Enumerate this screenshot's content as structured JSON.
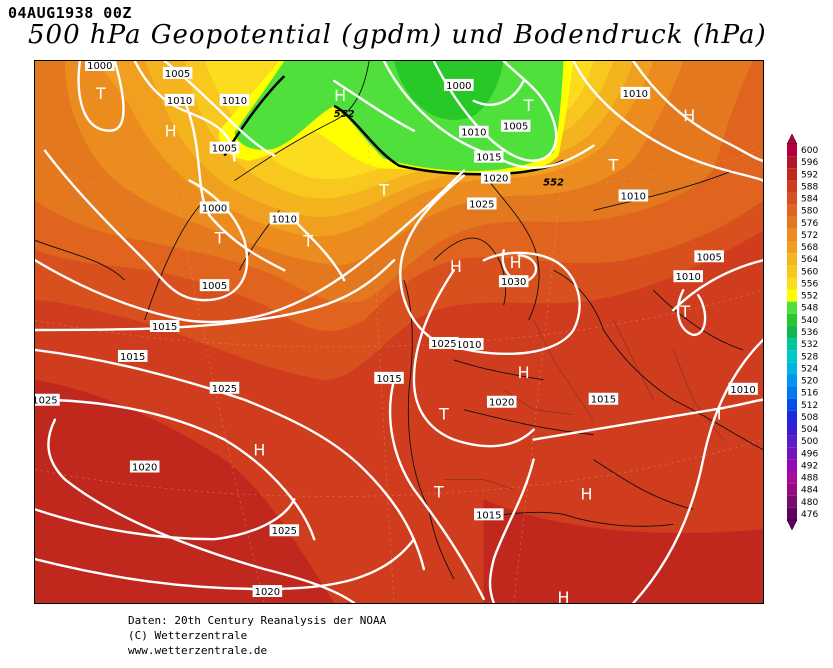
{
  "date": "04AUG1938 00Z",
  "title": "500 hPa Geopotential (gpdm) und Bodendruck (hPa)",
  "credits": [
    "Daten: 20th Century Reanalysis der NOAA",
    "(C) Wetterzentrale",
    "www.wetterzentrale.de"
  ],
  "colorbar": {
    "levels": [
      "600",
      "596",
      "592",
      "588",
      "584",
      "580",
      "576",
      "572",
      "568",
      "564",
      "560",
      "556",
      "552",
      "548",
      "540",
      "536",
      "532",
      "528",
      "524",
      "520",
      "516",
      "512",
      "508",
      "504",
      "500",
      "496",
      "492",
      "488",
      "484",
      "480",
      "476"
    ],
    "colors": [
      "#b4003c",
      "#b01830",
      "#c0281e",
      "#d03c1e",
      "#d8501e",
      "#e0641e",
      "#e4781e",
      "#ec8c1e",
      "#f0a01e",
      "#f4b41e",
      "#f8c81e",
      "#fcdc1e",
      "#ffff00",
      "#50e03c",
      "#28c828",
      "#14b450",
      "#00c89a",
      "#00c8c8",
      "#00b4e6",
      "#0096f0",
      "#0078f0",
      "#0050e6",
      "#1e28dc",
      "#3c1ed2",
      "#5a1ec8",
      "#7814be",
      "#960ab4",
      "#aa0aa0",
      "#960a82",
      "#780a6e",
      "#640064"
    ]
  },
  "map": {
    "isobar_labels": [
      "1000",
      "1005",
      "1010",
      "1010",
      "1000",
      "1005",
      "1010",
      "1005",
      "1015",
      "1000",
      "1010",
      "1005",
      "1015",
      "1020",
      "1025",
      "1010",
      "1010",
      "1030",
      "1010",
      "1005",
      "1015",
      "1010",
      "1020",
      "1025",
      "1015",
      "1025",
      "1025",
      "1020",
      "1015",
      "1025",
      "1015",
      "1020",
      "1010"
    ],
    "height_labels": [
      "552",
      "552"
    ],
    "pressure_centers": [
      "T",
      "H",
      "H",
      "T",
      "T",
      "T",
      "T",
      "H",
      "H",
      "T",
      "H",
      "H",
      "T",
      "T",
      "T",
      "H",
      "H",
      "T",
      "H"
    ]
  }
}
